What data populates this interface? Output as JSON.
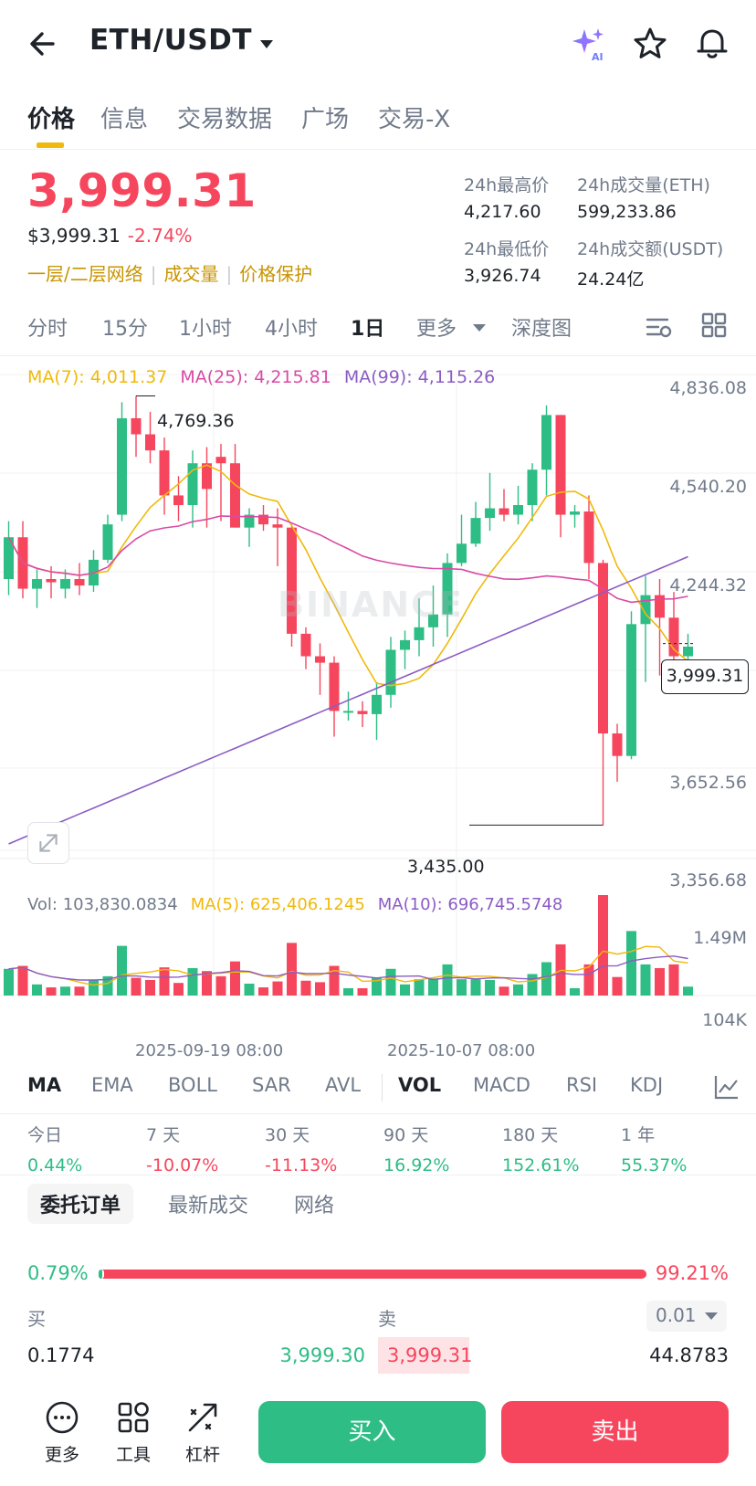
{
  "header": {
    "pair": "ETH/USDT",
    "ai_badge": "AI"
  },
  "tabs": [
    "价格",
    "信息",
    "交易数据",
    "广场",
    "交易-X"
  ],
  "price": {
    "last": "3,999.31",
    "usd": "$3,999.31",
    "change": "-2.74%",
    "links": [
      "一层/二层网络",
      "成交量",
      "价格保护"
    ]
  },
  "stats": {
    "high_label": "24h最高价",
    "high": "4,217.60",
    "vol_label": "24h成交量(ETH)",
    "vol": "599,233.86",
    "low_label": "24h最低价",
    "low": "3,926.74",
    "amount_label": "24h成交额(USDT)",
    "amount": "24.24亿"
  },
  "intervals": [
    "分时",
    "15分",
    "1小时",
    "4小时",
    "1日",
    "更多",
    "深度图"
  ],
  "active_interval": "1日",
  "chart": {
    "ma7": "MA(7): 4,011.37",
    "ma25": "MA(25): 4,215.81",
    "ma99": "MA(99): 4,115.26",
    "price_axis": [
      "4,836.08",
      "4,540.20",
      "4,244.32",
      "3,652.56",
      "3,356.68"
    ],
    "current_price_tag": "3,999.31",
    "high_marker": "4,769.36",
    "low_marker": "3,435.00",
    "watermark": "BINANCE",
    "vol_label": "Vol: 103,830.0834",
    "vol_ma5": "MA(5): 625,406.1245",
    "vol_ma10": "MA(10): 696,745.5748",
    "vol_axis": [
      "1.49M",
      "104K"
    ],
    "dates": [
      "2025-09-19 08:00",
      "2025-10-07 08:00"
    ],
    "colors": {
      "up": "#2ebd85",
      "down": "#f6465d",
      "ma7": "#f0b90b",
      "ma25": "#d94aa5",
      "ma99": "#8b5cc4"
    }
  },
  "chart_data": {
    "type": "candlestick",
    "ylim": [
      3356.68,
      4836.08
    ],
    "candles": [
      [
        4200,
        4330,
        4380,
        4150
      ],
      [
        4330,
        4170,
        4380,
        4140
      ],
      [
        4170,
        4200,
        4230,
        4110
      ],
      [
        4200,
        4190,
        4240,
        4140
      ],
      [
        4170,
        4200,
        4230,
        4140
      ],
      [
        4200,
        4180,
        4250,
        4150
      ],
      [
        4180,
        4260,
        4290,
        4160
      ],
      [
        4260,
        4370,
        4400,
        4250
      ],
      [
        4400,
        4700,
        4750,
        4380
      ],
      [
        4700,
        4650,
        4769.36,
        4580
      ],
      [
        4650,
        4600,
        4720,
        4560
      ],
      [
        4600,
        4460,
        4640,
        4400
      ],
      [
        4460,
        4430,
        4520,
        4380
      ],
      [
        4430,
        4560,
        4600,
        4360
      ],
      [
        4560,
        4480,
        4610,
        4360
      ],
      [
        4580,
        4560,
        4620,
        4380
      ],
      [
        4560,
        4360,
        4620,
        4360
      ],
      [
        4360,
        4400,
        4420,
        4300
      ],
      [
        4400,
        4370,
        4430,
        4350
      ],
      [
        4370,
        4360,
        4420,
        4240
      ],
      [
        4360,
        4030,
        4370,
        3990
      ],
      [
        4030,
        3960,
        4050,
        3920
      ],
      [
        3960,
        3940,
        4000,
        3840
      ],
      [
        3940,
        3790,
        3960,
        3710
      ],
      [
        3790,
        3790,
        3850,
        3760
      ],
      [
        3790,
        3780,
        3820,
        3740
      ],
      [
        3780,
        3840,
        3880,
        3700
      ],
      [
        3840,
        3980,
        4020,
        3800
      ],
      [
        3980,
        4010,
        4040,
        3920
      ],
      [
        4010,
        4050,
        4140,
        3960
      ],
      [
        4050,
        4090,
        4180,
        3990
      ],
      [
        4090,
        4250,
        4280,
        4020
      ],
      [
        4250,
        4310,
        4400,
        4240
      ],
      [
        4310,
        4390,
        4440,
        4300
      ],
      [
        4390,
        4420,
        4530,
        4350
      ],
      [
        4420,
        4400,
        4480,
        4380
      ],
      [
        4400,
        4430,
        4490,
        4370
      ],
      [
        4430,
        4540,
        4560,
        4380
      ],
      [
        4540,
        4710,
        4740,
        4460
      ],
      [
        4710,
        4400,
        4710,
        4330
      ],
      [
        4400,
        4410,
        4430,
        4360
      ],
      [
        4410,
        4250,
        4460,
        4200
      ],
      [
        4250,
        3720,
        4260,
        3435.0
      ],
      [
        3720,
        3650,
        3750,
        3570
      ],
      [
        3650,
        4060,
        4100,
        3640
      ],
      [
        4060,
        4150,
        4210,
        3880
      ],
      [
        4150,
        4080,
        4200,
        3900
      ],
      [
        4080,
        3960,
        4160,
        3860
      ],
      [
        3960,
        3990,
        4030,
        3940
      ]
    ]
  },
  "indicators": [
    "MA",
    "EMA",
    "BOLL",
    "SAR",
    "AVL",
    "VOL",
    "MACD",
    "RSI",
    "KDJ"
  ],
  "performance": [
    {
      "label": "今日",
      "value": "0.44%",
      "dir": "pos"
    },
    {
      "label": "7 天",
      "value": "-10.07%",
      "dir": "neg"
    },
    {
      "label": "30 天",
      "value": "-11.13%",
      "dir": "neg"
    },
    {
      "label": "90 天",
      "value": "16.92%",
      "dir": "pos"
    },
    {
      "label": "180 天",
      "value": "152.61%",
      "dir": "pos"
    },
    {
      "label": "1 年",
      "value": "55.37%",
      "dir": "pos"
    }
  ],
  "book_tabs": [
    "委托订单",
    "最新成交",
    "网络"
  ],
  "orderbook": {
    "buy_ratio": "0.79%",
    "sell_ratio": "99.21%",
    "buy_fraction": 0.0079,
    "bid_label": "买",
    "ask_label": "卖",
    "precision": "0.01",
    "rows": [
      {
        "bid_qty": "0.1774",
        "bid_price": "3,999.30",
        "ask_price": "3,999.31",
        "ask_qty": "44.8783"
      }
    ]
  },
  "bottom": {
    "more": "更多",
    "tools": "工具",
    "leverage": "杠杆",
    "buy": "买入",
    "sell": "卖出"
  }
}
